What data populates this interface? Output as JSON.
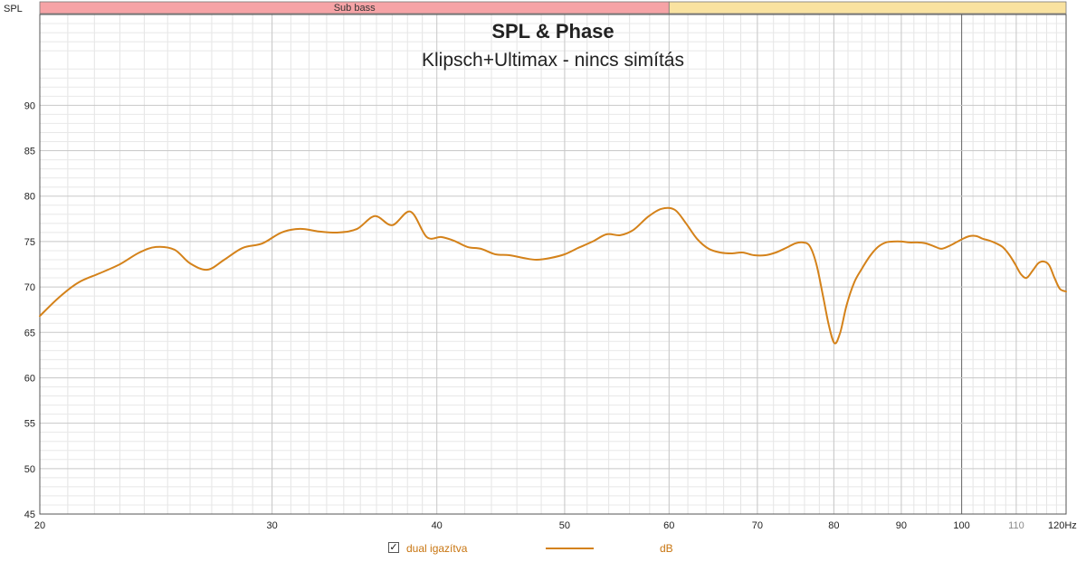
{
  "chart_data": {
    "type": "line",
    "title": "SPL & Phase",
    "subtitle": "Klipsch+Ultimax - nincs simítás",
    "ylabel": "SPL",
    "xunit": "Hz",
    "xscale": "log",
    "xlim": [
      20,
      120
    ],
    "ylim": [
      45,
      100
    ],
    "grid": true,
    "bands": [
      {
        "label": "Sub bass",
        "from": 20,
        "to": 60,
        "color": "#f6a3a6"
      },
      {
        "label": "",
        "from": 60,
        "to": 120,
        "color": "#f9e2a0"
      }
    ],
    "x_ticks_major": [
      {
        "value": 20,
        "label": "20"
      },
      {
        "value": 30,
        "label": "30"
      },
      {
        "value": 40,
        "label": "40"
      },
      {
        "value": 50,
        "label": "50"
      },
      {
        "value": 60,
        "label": "60"
      },
      {
        "value": 70,
        "label": "70"
      },
      {
        "value": 80,
        "label": "80"
      },
      {
        "value": 90,
        "label": "90"
      },
      {
        "value": 100,
        "label": "100"
      },
      {
        "value": 120,
        "label": "120Hz"
      }
    ],
    "x_ticks_minor": [
      {
        "value": 110,
        "label": "110"
      }
    ],
    "y_ticks": [
      {
        "value": 45,
        "label": "45"
      },
      {
        "value": 50,
        "label": "50"
      },
      {
        "value": 55,
        "label": "55"
      },
      {
        "value": 60,
        "label": "60"
      },
      {
        "value": 65,
        "label": "65"
      },
      {
        "value": 70,
        "label": "70"
      },
      {
        "value": 75,
        "label": "75"
      },
      {
        "value": 80,
        "label": "80"
      },
      {
        "value": 85,
        "label": "85"
      },
      {
        "value": 90,
        "label": "90"
      }
    ],
    "series": [
      {
        "name": "dual igazítva",
        "unit": "dB",
        "color": "#d4821a",
        "x": [
          20,
          20.7,
          21.4,
          22.2,
          23.0,
          23.8,
          24.5,
          25.3,
          26.0,
          26.8,
          27.6,
          28.5,
          29.5,
          30.5,
          31.5,
          32.6,
          33.7,
          34.8,
          35.9,
          37.0,
          38.2,
          39.3,
          40.3,
          41.2,
          42.2,
          43.2,
          44.3,
          45.4,
          46.5,
          47.6,
          48.8,
          50.0,
          51.2,
          52.5,
          53.8,
          55.1,
          56.4,
          57.8,
          59.2,
          60.6,
          61.8,
          63.0,
          64.3,
          65.6,
          66.9,
          68.2,
          69.6,
          71.0,
          72.3,
          73.6,
          74.8,
          75.8,
          76.7,
          77.6,
          78.5,
          79.3,
          80.1,
          80.9,
          81.8,
          82.9,
          84.0,
          85.2,
          86.4,
          87.6,
          88.8,
          90.0,
          91.3,
          92.6,
          93.9,
          95.2,
          96.5,
          97.8,
          99.0,
          100.2,
          101.4,
          102.6,
          103.8,
          105.0,
          106.2,
          107.4,
          108.6,
          109.8,
          110.9,
          112.0,
          113.2,
          114.3,
          115.4,
          116.5,
          117.6,
          118.7,
          120.0
        ],
        "values": [
          66.8,
          68.9,
          70.5,
          71.5,
          72.5,
          73.8,
          74.4,
          74.1,
          72.6,
          71.9,
          73.0,
          74.3,
          74.8,
          76.0,
          76.4,
          76.1,
          76.0,
          76.4,
          77.8,
          76.8,
          78.3,
          75.5,
          75.5,
          75.1,
          74.4,
          74.2,
          73.6,
          73.5,
          73.2,
          73.0,
          73.2,
          73.6,
          74.3,
          75.0,
          75.8,
          75.7,
          76.3,
          77.7,
          78.6,
          78.5,
          77.0,
          75.3,
          74.2,
          73.8,
          73.7,
          73.8,
          73.5,
          73.5,
          73.8,
          74.3,
          74.8,
          74.9,
          74.5,
          72.5,
          69.0,
          65.8,
          63.8,
          65.0,
          68.0,
          70.5,
          72.0,
          73.4,
          74.4,
          74.9,
          75.0,
          75.0,
          74.9,
          74.9,
          74.8,
          74.5,
          74.2,
          74.5,
          74.9,
          75.3,
          75.6,
          75.6,
          75.3,
          75.1,
          74.8,
          74.4,
          73.6,
          72.5,
          71.4,
          71.0,
          71.8,
          72.6,
          72.8,
          72.4,
          71.0,
          69.8,
          69.5
        ]
      }
    ]
  },
  "legend": {
    "checkbox_mark": "✓",
    "series_name": "dual igazítva",
    "unit": "dB"
  }
}
